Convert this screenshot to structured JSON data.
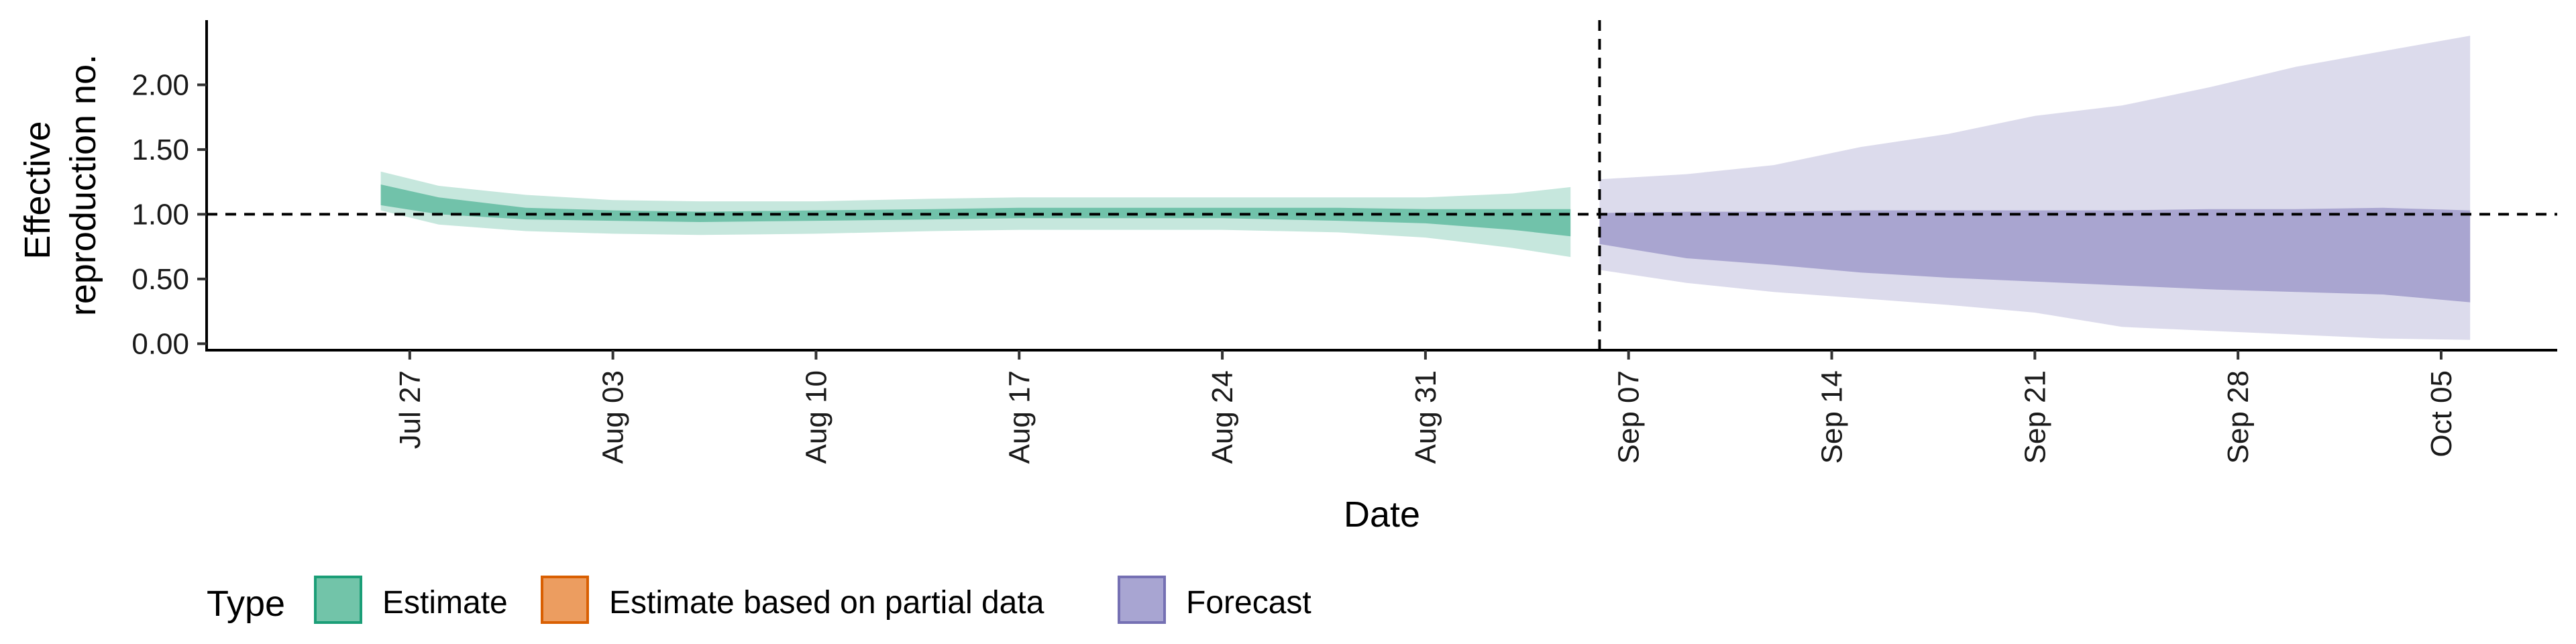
{
  "chart_data": {
    "type": "area",
    "xlabel": "Date",
    "ylabel_lines": [
      "Effective",
      "reproduction no."
    ],
    "x_start": "2020-07-25",
    "y_ticks": [
      0,
      0.5,
      1,
      1.5,
      2
    ],
    "y_tick_labels": [
      "0.00",
      "0.50",
      "1.00",
      "1.50",
      "2.00"
    ],
    "ylim": [
      -0.05,
      2.5
    ],
    "x_ticks": [
      {
        "date": "2020-07-27",
        "label": "Jul 27"
      },
      {
        "date": "2020-08-03",
        "label": "Aug 03"
      },
      {
        "date": "2020-08-10",
        "label": "Aug 10"
      },
      {
        "date": "2020-08-17",
        "label": "Aug 17"
      },
      {
        "date": "2020-08-24",
        "label": "Aug 24"
      },
      {
        "date": "2020-08-31",
        "label": "Aug 31"
      },
      {
        "date": "2020-09-07",
        "label": "Sep 07"
      },
      {
        "date": "2020-09-14",
        "label": "Sep 14"
      },
      {
        "date": "2020-09-21",
        "label": "Sep 21"
      },
      {
        "date": "2020-09-28",
        "label": "Sep 28"
      },
      {
        "date": "2020-10-05",
        "label": "Oct 05"
      }
    ],
    "xlim": [
      "2020-07-20",
      "2020-10-09"
    ],
    "hline_y": 1.0,
    "vline_date": "2020-09-06",
    "series": [
      {
        "name": "Estimate",
        "color": "#1b9e77",
        "x_dates": [
          "2020-07-26",
          "2020-07-28",
          "2020-07-31",
          "2020-08-03",
          "2020-08-06",
          "2020-08-10",
          "2020-08-14",
          "2020-08-17",
          "2020-08-21",
          "2020-08-24",
          "2020-08-28",
          "2020-08-31",
          "2020-09-03",
          "2020-09-05"
        ],
        "outer_upper": [
          1.33,
          1.22,
          1.15,
          1.11,
          1.1,
          1.1,
          1.12,
          1.13,
          1.13,
          1.13,
          1.13,
          1.13,
          1.16,
          1.21
        ],
        "outer_lower": [
          1.03,
          0.92,
          0.87,
          0.85,
          0.84,
          0.85,
          0.87,
          0.88,
          0.88,
          0.88,
          0.86,
          0.82,
          0.74,
          0.67
        ],
        "inner_upper": [
          1.23,
          1.13,
          1.05,
          1.03,
          1.02,
          1.03,
          1.04,
          1.05,
          1.05,
          1.05,
          1.05,
          1.04,
          1.04,
          1.04
        ],
        "inner_lower": [
          1.07,
          1.0,
          0.96,
          0.95,
          0.94,
          0.95,
          0.96,
          0.97,
          0.97,
          0.97,
          0.95,
          0.93,
          0.88,
          0.83
        ]
      },
      {
        "name": "Forecast",
        "color": "#7570b3",
        "x_dates": [
          "2020-09-06",
          "2020-09-09",
          "2020-09-12",
          "2020-09-15",
          "2020-09-18",
          "2020-09-21",
          "2020-09-24",
          "2020-09-27",
          "2020-09-30",
          "2020-10-03",
          "2020-10-06"
        ],
        "outer_upper": [
          1.27,
          1.31,
          1.38,
          1.52,
          1.62,
          1.76,
          1.84,
          1.98,
          2.14,
          2.26,
          2.38
        ],
        "outer_lower": [
          0.57,
          0.47,
          0.4,
          0.35,
          0.3,
          0.24,
          0.13,
          0.1,
          0.07,
          0.04,
          0.03
        ],
        "inner_upper": [
          1.01,
          1.02,
          1.02,
          1.03,
          1.03,
          1.03,
          1.03,
          1.04,
          1.04,
          1.05,
          1.03
        ],
        "inner_lower": [
          0.77,
          0.66,
          0.61,
          0.55,
          0.51,
          0.48,
          0.45,
          0.42,
          0.4,
          0.38,
          0.32
        ]
      }
    ],
    "legend": {
      "title": "Type",
      "placement": "bottom-left",
      "items": [
        {
          "label": "Estimate",
          "fill": "#72c4a9",
          "stroke": "#1b9e77"
        },
        {
          "label": "Estimate based on partial data",
          "fill": "#ec9d60",
          "stroke": "#d95f02"
        },
        {
          "label": "Forecast",
          "fill": "#a8a5d2",
          "stroke": "#7570b3"
        }
      ]
    },
    "grid": false
  }
}
